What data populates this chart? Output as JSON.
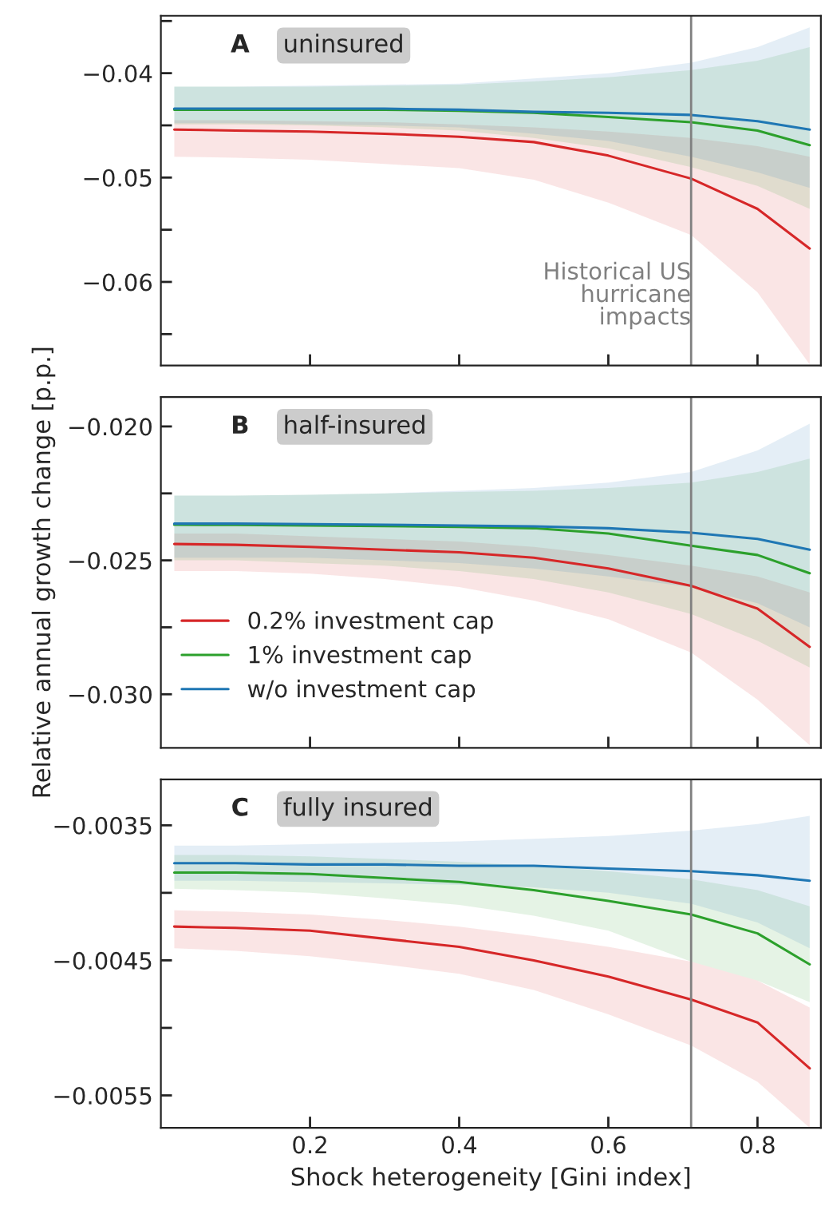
{
  "chart_data": [
    {
      "type": "line",
      "title": "uninsured",
      "annotations": [
        "A"
      ],
      "tick_labels": "y",
      "x": [
        0.018,
        0.1,
        0.2,
        0.3,
        0.4,
        0.5,
        0.6,
        0.711,
        0.8,
        0.87
      ],
      "xlim": [
        0.0,
        0.885
      ],
      "xticks": [
        {
          "value": 0.2,
          "label": null
        },
        {
          "value": 0.4,
          "label": null
        },
        {
          "value": 0.6,
          "label": null
        },
        {
          "value": 0.8,
          "label": null
        }
      ],
      "ylim": [
        -0.068,
        -0.0345
      ],
      "yticks": [
        {
          "value": -0.065,
          "label": null
        },
        {
          "value": -0.06,
          "label": "−0.06"
        },
        {
          "value": -0.055,
          "label": null
        },
        {
          "value": -0.05,
          "label": "−0.05"
        },
        {
          "value": -0.045,
          "label": null
        },
        {
          "value": -0.04,
          "label": "−0.04"
        },
        {
          "value": -0.035,
          "label": null
        }
      ],
      "ref_lines": [
        {
          "axis": "x",
          "value": 0.711,
          "label": "Historical US\nhurricane\nimpacts",
          "color": "#808080"
        }
      ],
      "series": [
        {
          "color": "#d62728",
          "values": [
            -0.0454,
            -0.0455,
            -0.0456,
            -0.0458,
            -0.0461,
            -0.0466,
            -0.0479,
            -0.0501,
            -0.053,
            -0.0568
          ],
          "lower": [
            -0.048,
            -0.0481,
            -0.0483,
            -0.0487,
            -0.0491,
            -0.0502,
            -0.0524,
            -0.0555,
            -0.061,
            -0.0679
          ],
          "upper": [
            -0.0445,
            -0.0445,
            -0.0446,
            -0.0447,
            -0.0449,
            -0.0452,
            -0.0456,
            -0.0462,
            -0.047,
            -0.048
          ]
        },
        {
          "color": "#2ca02c",
          "values": [
            -0.0435,
            -0.0435,
            -0.0435,
            -0.0435,
            -0.0436,
            -0.0438,
            -0.0442,
            -0.0447,
            -0.0455,
            -0.0469
          ],
          "lower": [
            -0.0449,
            -0.0449,
            -0.045,
            -0.0452,
            -0.0455,
            -0.0462,
            -0.0472,
            -0.049,
            -0.0508,
            -0.053
          ],
          "upper": [
            -0.0413,
            -0.0413,
            -0.0413,
            -0.0412,
            -0.0411,
            -0.0408,
            -0.0404,
            -0.0397,
            -0.0388,
            -0.0375
          ]
        },
        {
          "color": "#1f77b4",
          "values": [
            -0.0434,
            -0.0434,
            -0.0434,
            -0.0434,
            -0.0435,
            -0.0437,
            -0.0438,
            -0.044,
            -0.0446,
            -0.0454
          ],
          "lower": [
            -0.0448,
            -0.0448,
            -0.0449,
            -0.045,
            -0.0452,
            -0.0458,
            -0.0465,
            -0.048,
            -0.0495,
            -0.051
          ],
          "upper": [
            -0.0413,
            -0.0413,
            -0.0412,
            -0.0411,
            -0.041,
            -0.0405,
            -0.04,
            -0.039,
            -0.0375,
            -0.0356
          ]
        }
      ]
    },
    {
      "type": "line",
      "title": "half-insured",
      "annotations": [
        "B"
      ],
      "tick_labels": "y",
      "ylabel": "Relative annual growth change [p.p.]",
      "legend": "center left",
      "x": [
        0.018,
        0.1,
        0.2,
        0.3,
        0.4,
        0.5,
        0.6,
        0.711,
        0.8,
        0.87
      ],
      "xlim": [
        0.0,
        0.885
      ],
      "xticks": [
        {
          "value": 0.2,
          "label": null
        },
        {
          "value": 0.4,
          "label": null
        },
        {
          "value": 0.6,
          "label": null
        },
        {
          "value": 0.8,
          "label": null
        }
      ],
      "ylim": [
        -0.032,
        -0.0189
      ],
      "yticks": [
        {
          "value": -0.03,
          "label": "−0.030"
        },
        {
          "value": -0.0275,
          "label": null
        },
        {
          "value": -0.025,
          "label": "−0.025"
        },
        {
          "value": -0.0225,
          "label": null
        },
        {
          "value": -0.02,
          "label": "−0.020"
        }
      ],
      "ref_lines": [
        {
          "axis": "x",
          "value": 0.711,
          "color": "#808080"
        }
      ],
      "series": [
        {
          "name": "0.2% investment cap",
          "color": "#d62728",
          "values": [
            -0.02439,
            -0.02442,
            -0.0245,
            -0.0246,
            -0.0247,
            -0.0249,
            -0.0253,
            -0.02595,
            -0.0268,
            -0.02823
          ],
          "lower": [
            -0.0254,
            -0.0254,
            -0.0255,
            -0.0257,
            -0.026,
            -0.0265,
            -0.0272,
            -0.02844,
            -0.0302,
            -0.0319
          ],
          "upper": [
            -0.024,
            -0.024,
            -0.0241,
            -0.0242,
            -0.0243,
            -0.0245,
            -0.0248,
            -0.0252,
            -0.0256,
            -0.0262
          ]
        },
        {
          "name": "1% investment cap",
          "color": "#2ca02c",
          "values": [
            -0.02367,
            -0.02368,
            -0.0237,
            -0.02372,
            -0.02375,
            -0.0238,
            -0.024,
            -0.02445,
            -0.0248,
            -0.02548
          ],
          "lower": [
            -0.025,
            -0.025,
            -0.0251,
            -0.0252,
            -0.0254,
            -0.0257,
            -0.0262,
            -0.027,
            -0.028,
            -0.029
          ],
          "upper": [
            -0.02258,
            -0.02258,
            -0.02255,
            -0.0225,
            -0.02245,
            -0.0224,
            -0.0223,
            -0.0221,
            -0.0217,
            -0.0212
          ]
        },
        {
          "name": "w/o investment cap",
          "color": "#1f77b4",
          "values": [
            -0.02363,
            -0.02363,
            -0.02365,
            -0.02367,
            -0.0237,
            -0.02373,
            -0.0238,
            -0.02397,
            -0.0242,
            -0.0246
          ],
          "lower": [
            -0.0249,
            -0.0249,
            -0.0249,
            -0.025,
            -0.0251,
            -0.0253,
            -0.0256,
            -0.026,
            -0.0266,
            -0.0275
          ],
          "upper": [
            -0.02258,
            -0.02258,
            -0.02255,
            -0.0225,
            -0.0224,
            -0.0223,
            -0.0221,
            -0.0217,
            -0.0209,
            -0.0199
          ]
        }
      ]
    },
    {
      "type": "line",
      "title": "fully insured",
      "annotations": [
        "C"
      ],
      "xlabel": "Shock heterogeneity [Gini index]",
      "x": [
        0.018,
        0.1,
        0.2,
        0.3,
        0.4,
        0.5,
        0.6,
        0.711,
        0.8,
        0.87
      ],
      "xlim": [
        0.0,
        0.885
      ],
      "xticks": [
        0.2,
        0.4,
        0.6,
        0.8
      ],
      "ylim": [
        -0.00574,
        -0.00316
      ],
      "yticks": [
        {
          "value": -0.0055,
          "label": "−0.0055"
        },
        {
          "value": -0.005,
          "label": null
        },
        {
          "value": -0.0045,
          "label": "−0.0045"
        },
        {
          "value": -0.004,
          "label": null
        },
        {
          "value": -0.0035,
          "label": "−0.0035"
        }
      ],
      "ref_lines": [
        {
          "axis": "x",
          "value": 0.711,
          "color": "#808080"
        }
      ],
      "series": [
        {
          "color": "#d62728",
          "values": [
            -0.00425,
            -0.00426,
            -0.00428,
            -0.00434,
            -0.0044,
            -0.0045,
            -0.00462,
            -0.00479,
            -0.00496,
            -0.0053
          ],
          "lower": [
            -0.00441,
            -0.00443,
            -0.00447,
            -0.00453,
            -0.0046,
            -0.00472,
            -0.0049,
            -0.00513,
            -0.0054,
            -0.00574
          ],
          "upper": [
            -0.00413,
            -0.00414,
            -0.00416,
            -0.0042,
            -0.00425,
            -0.00432,
            -0.0044,
            -0.00451,
            -0.00465,
            -0.00485
          ]
        },
        {
          "color": "#2ca02c",
          "values": [
            -0.00385,
            -0.00385,
            -0.00386,
            -0.00389,
            -0.00392,
            -0.00398,
            -0.00406,
            -0.00416,
            -0.0043,
            -0.00453
          ],
          "lower": [
            -0.00397,
            -0.00398,
            -0.004,
            -0.00404,
            -0.00409,
            -0.00417,
            -0.00428,
            -0.00451,
            -0.00465,
            -0.00481
          ],
          "upper": [
            -0.00372,
            -0.00372,
            -0.00373,
            -0.00375,
            -0.00377,
            -0.0038,
            -0.00384,
            -0.0039,
            -0.00398,
            -0.0041
          ]
        },
        {
          "color": "#1f77b4",
          "values": [
            -0.00378,
            -0.00378,
            -0.00379,
            -0.00379,
            -0.0038,
            -0.0038,
            -0.00382,
            -0.00384,
            -0.00387,
            -0.00391
          ],
          "lower": [
            -0.00391,
            -0.00391,
            -0.00392,
            -0.00393,
            -0.00394,
            -0.00396,
            -0.004,
            -0.00408,
            -0.00422,
            -0.00441
          ],
          "upper": [
            -0.00365,
            -0.00365,
            -0.00364,
            -0.00363,
            -0.00362,
            -0.0036,
            -0.00358,
            -0.00354,
            -0.00349,
            -0.00343
          ]
        }
      ]
    }
  ]
}
